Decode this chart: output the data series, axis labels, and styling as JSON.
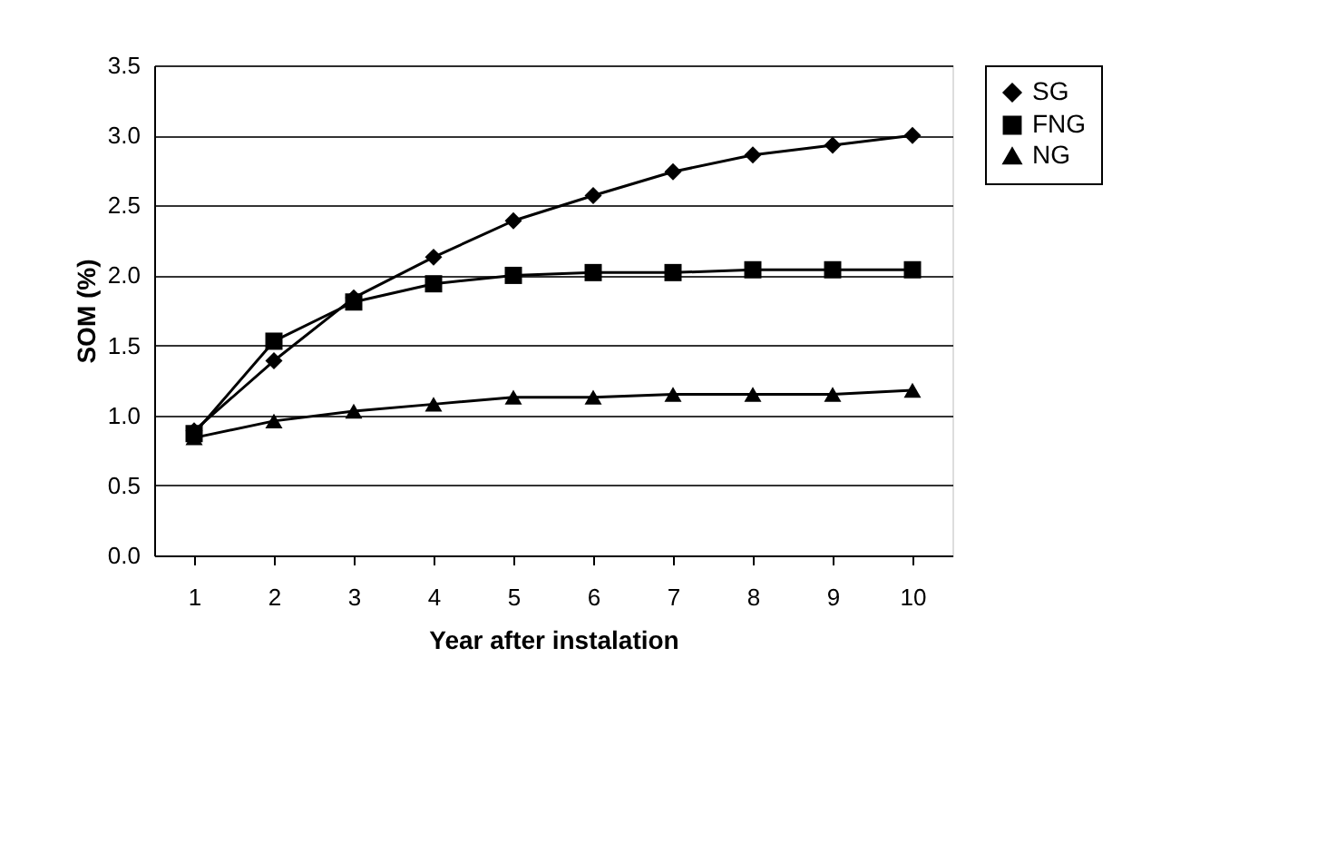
{
  "chart_data": {
    "type": "line",
    "xlabel": "Year after instalation",
    "ylabel": "SOM (%)",
    "categories": [
      "1",
      "2",
      "3",
      "4",
      "5",
      "6",
      "7",
      "8",
      "9",
      "10"
    ],
    "series": [
      {
        "name": "SG",
        "color": "#000000",
        "marker": "diamond",
        "values": [
          0.89,
          1.39,
          1.84,
          2.13,
          2.39,
          2.57,
          2.74,
          2.86,
          2.93,
          3.0
        ]
      },
      {
        "name": "FNG",
        "color": "#000000",
        "marker": "square",
        "values": [
          0.87,
          1.53,
          1.81,
          1.94,
          2.0,
          2.02,
          2.02,
          2.04,
          2.04,
          2.04
        ]
      },
      {
        "name": "NG",
        "color": "#000000",
        "marker": "triangle",
        "values": [
          0.84,
          0.96,
          1.03,
          1.08,
          1.13,
          1.13,
          1.15,
          1.15,
          1.15,
          1.18
        ]
      }
    ],
    "ylim": [
      0,
      3.5
    ],
    "yticks": [
      {
        "value": 0,
        "label": "0.0"
      },
      {
        "value": 0.5,
        "label": "0.5"
      },
      {
        "value": 1,
        "label": "1.0"
      },
      {
        "value": 1.5,
        "label": "1.5"
      },
      {
        "value": 2,
        "label": "2.0"
      },
      {
        "value": 2.5,
        "label": "2.5"
      },
      {
        "value": 3,
        "label": "3.0"
      },
      {
        "value": 3.5,
        "label": "3.5"
      }
    ],
    "grid": "y",
    "legend": "right",
    "line_style": "solid"
  }
}
